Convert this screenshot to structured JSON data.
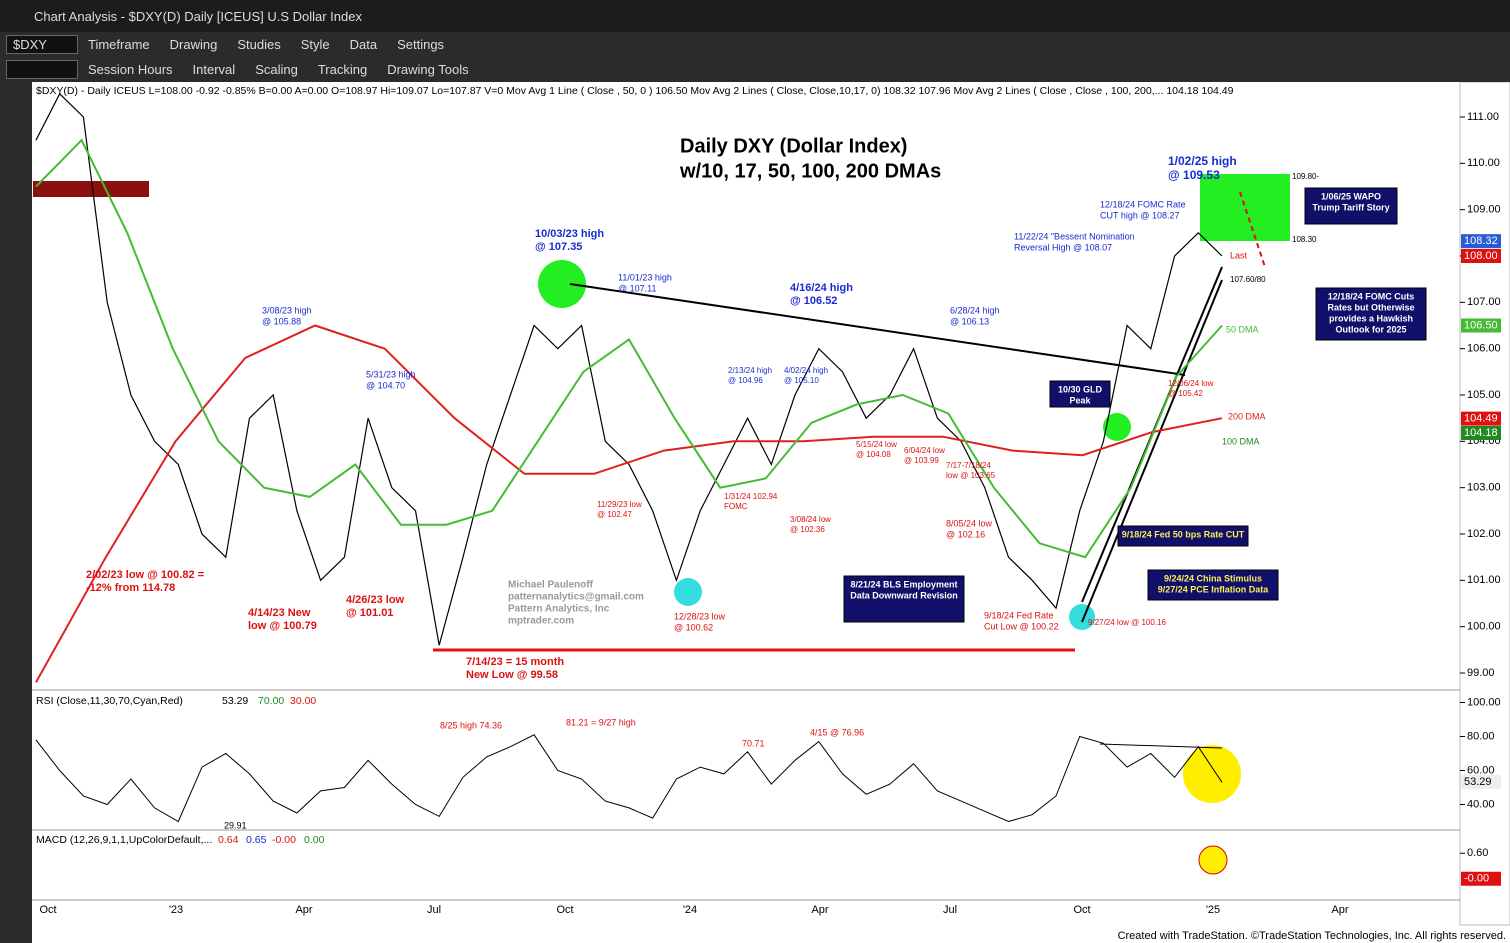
{
  "window_title": "Chart Analysis - $DXY(D) Daily [ICEUS] U.S Dollar Index",
  "toolbar": [
    "$DXY",
    "Timeframe",
    "Drawing",
    "Studies",
    "Style",
    "Data",
    "Settings"
  ],
  "toolbar2": [
    "Session Hours",
    "Interval",
    "Scaling",
    "Tracking",
    "Drawing Tools"
  ],
  "info_line": "$DXY(D) - Daily  ICEUS  L=108.00  -0.92  -0.85%  B=0.00  A=0.00  O=108.97  Hi=109.07  Lo=107.87  V=0  Mov Avg 1 Line (  Close , 50,  0 )  106.50  Mov Avg 2 Lines ( Close, Close,10,17, 0)  108.32  107.96  Mov Avg 2 Lines (  Close , Close , 100, 200,...  104.18  104.49",
  "footer": "Created with TradeStation. ©TradeStation Technologies, Inc. All rights reserved.",
  "chart_data": {
    "type": "line",
    "title": [
      "Daily DXY (Dollar Index)",
      "w/10, 17, 50, 100, 200 DMAs"
    ],
    "x_labels": [
      "Oct",
      "'23",
      "Apr",
      "Jul",
      "Oct",
      "'24",
      "Apr",
      "Jul",
      "Oct",
      "'25",
      "Apr"
    ],
    "ylim": [
      98.5,
      111.8
    ],
    "yticks": [
      {
        "value": 99,
        "label": "99.00"
      },
      {
        "value": 100,
        "label": "100.00"
      },
      {
        "value": 101,
        "label": "101.00"
      },
      {
        "value": 102,
        "label": "102.00"
      },
      {
        "value": 103,
        "label": "103.00"
      },
      {
        "value": 104,
        "label": "104.00"
      },
      {
        "value": 105,
        "label": "105.00"
      },
      {
        "value": 106,
        "label": "106.00"
      },
      {
        "value": 107,
        "label": "107.00"
      },
      {
        "value": 108,
        "label": "108.00"
      },
      {
        "value": 109,
        "label": "109.00"
      },
      {
        "value": 110,
        "label": "110.00"
      },
      {
        "value": 111,
        "label": "111.00"
      }
    ],
    "series": [
      {
        "name": "$DXY",
        "color": "#000000",
        "values": [
          110.5,
          111.5,
          111,
          107,
          105,
          104,
          103.5,
          102,
          101.5,
          104.5,
          105,
          102.5,
          101,
          101.5,
          104.5,
          103,
          102.5,
          99.6,
          101.5,
          103.5,
          105,
          106.5,
          106,
          106.5,
          104,
          103.5,
          102.5,
          101,
          102.5,
          103.5,
          104.5,
          103.5,
          105,
          106,
          105.5,
          104.5,
          105,
          106,
          104.5,
          104,
          103,
          101.5,
          101,
          100.4,
          102.5,
          104,
          106.5,
          106,
          108,
          108.5,
          108
        ]
      },
      {
        "name": "200 DMA",
        "color": "#e02020",
        "values": [
          98.8,
          101.5,
          104,
          105.8,
          106.5,
          106,
          104.5,
          103.3,
          103.3,
          103.8,
          104,
          104,
          104.1,
          104.1,
          103.8,
          103.7,
          104.2,
          104.5
        ]
      },
      {
        "name": "50 DMA",
        "color": "#44bb33",
        "values": [
          109.5,
          110.5,
          108.5,
          106,
          104,
          103,
          102.8,
          103.5,
          102.2,
          102.2,
          102.5,
          104,
          105.5,
          106.2,
          104.5,
          103,
          103.2,
          104.4,
          104.8,
          105,
          104.6,
          103,
          101.8,
          101.5,
          103,
          105.4,
          106.5
        ]
      }
    ],
    "annotations": [
      {
        "lines": [
          "1/02/25 high",
          "@ 109.53"
        ],
        "color": "#1a2bd0"
      },
      {
        "lines": [
          "12/18/24 FOMC Rate",
          "CUT  high @ 108.27"
        ],
        "color": "#1a2bd0"
      },
      {
        "lines": [
          "11/22/24 \"Bessent Nomination",
          "Reversal High @ 108.07"
        ],
        "color": "#1a2bd0"
      },
      {
        "lines": [
          "10/03/23 high",
          "@ 107.35"
        ],
        "color": "#1a2bd0"
      },
      {
        "lines": [
          "11/01/23 high",
          "@ 107.11"
        ],
        "color": "#1a2bd0"
      },
      {
        "lines": [
          "4/16/24 high",
          "@ 106.52"
        ],
        "color": "#1a2bd0"
      },
      {
        "lines": [
          "6/28/24 high",
          "@ 106.13"
        ],
        "color": "#1a2bd0"
      },
      {
        "lines": [
          "3/08/23 high",
          "@ 105.88"
        ],
        "color": "#1a2bd0"
      },
      {
        "lines": [
          "5/31/23 high",
          "@ 104.70"
        ],
        "color": "#1a2bd0"
      },
      {
        "lines": [
          "2/13/24 high",
          "@ 104.96"
        ],
        "color": "#1a2bd0"
      },
      {
        "lines": [
          "4/02/24 high",
          "@ 105.10"
        ],
        "color": "#1a2bd0"
      },
      {
        "lines": [
          "2/02/23 low @ 100.82 =",
          "-12% from 114.78"
        ],
        "color": "#dd1111"
      },
      {
        "lines": [
          "4/14/23 New",
          "low @ 100.79"
        ],
        "color": "#dd1111"
      },
      {
        "lines": [
          "4/26/23 low",
          "@ 101.01"
        ],
        "color": "#dd1111"
      },
      {
        "lines": [
          "7/14/23 = 15 month",
          "New Low @ 99.58"
        ],
        "color": "#dd1111"
      },
      {
        "lines": [
          "11/29/23 low",
          "@ 102.47"
        ],
        "color": "#dd1111"
      },
      {
        "lines": [
          "1/31/24 102.94",
          "FOMC"
        ],
        "color": "#dd1111"
      },
      {
        "lines": [
          "3/08/24 low",
          "@ 102.36"
        ],
        "color": "#dd1111"
      },
      {
        "lines": [
          "5/15/24 low",
          "@ 104.08"
        ],
        "color": "#dd1111"
      },
      {
        "lines": [
          "6/04/24 low",
          "@ 103.99"
        ],
        "color": "#dd1111"
      },
      {
        "lines": [
          "7/17-7/18/24",
          "low @ 103.65"
        ],
        "color": "#dd1111"
      },
      {
        "lines": [
          "8/05/24 low",
          "@ 102.16"
        ],
        "color": "#dd1111"
      },
      {
        "lines": [
          "12/28/23 low",
          "@ 100.62"
        ],
        "color": "#dd1111"
      },
      {
        "lines": [
          "9/18/24 Fed Rate",
          "Cut Low @ 100.22"
        ],
        "color": "#dd1111"
      },
      {
        "lines": [
          "9/27/24 low @ 100.16"
        ],
        "color": "#dd1111"
      },
      {
        "lines": [
          "12/06/24 low",
          "@ 105.42"
        ],
        "color": "#dd1111"
      },
      {
        "lines": [
          "Last"
        ],
        "color": "#dd1111"
      },
      {
        "lines": [
          "107.60/80"
        ],
        "color": "#000000"
      },
      {
        "lines": [
          "50 DMA"
        ],
        "color": "#44bb33"
      },
      {
        "lines": [
          "200 DMA"
        ],
        "color": "#e02020"
      },
      {
        "lines": [
          "100 DMA"
        ],
        "color": "#1f8a1f"
      },
      {
        "lines": [
          "109.80-"
        ],
        "color": "#000000"
      },
      {
        "lines": [
          "108.30"
        ],
        "color": "#000000"
      },
      {
        "lines": [
          "Michael Paulenoff",
          "patternanalytics@gmail.com",
          "Pattern Analytics, Inc",
          "mptrader.com"
        ],
        "color": "#999999"
      }
    ],
    "boxes": [
      {
        "lines": [
          "1/06/25 WAPO",
          "Trump Tariff Story"
        ]
      },
      {
        "lines": [
          "12/18/24 FOMC Cuts",
          "Rates but Otherwise",
          "provides a Hawkish",
          "Outlook for 2025"
        ]
      },
      {
        "lines": [
          "10/30 GLD",
          "Peak"
        ]
      },
      {
        "lines": [
          "9/18/24 Fed 50 bps Rate CUT"
        ]
      },
      {
        "lines": [
          "9/24/24 China Stimulus",
          "9/27/24 PCE Inflation Data"
        ]
      },
      {
        "lines": [
          "8/21/24 BLS Employment",
          "Data Downward Revision"
        ]
      }
    ],
    "badges": [
      {
        "value": 108.32,
        "label": "108.32",
        "color": "#2a5bd7"
      },
      {
        "value": 108,
        "label": "108.00",
        "color": "#dd1111"
      },
      {
        "value": 106.5,
        "label": "106.50",
        "color": "#44bb33"
      },
      {
        "value": 104.49,
        "label": "104.49",
        "color": "#dd1111"
      },
      {
        "value": 104.18,
        "label": "104.18",
        "color": "#1f8a1f"
      }
    ],
    "rsi": {
      "header": [
        "RSI (Close,11,30,70,Cyan,Red)",
        "53.29",
        "70.00",
        "30.00"
      ],
      "ylim": [
        25,
        105
      ],
      "yticks": [
        {
          "value": 40,
          "label": "40.00"
        },
        {
          "value": 60,
          "label": "60.00"
        },
        {
          "value": 80,
          "label": "80.00"
        },
        {
          "value": 100,
          "label": "100.00"
        }
      ],
      "values": [
        78,
        60,
        45,
        40,
        55,
        38,
        30,
        62,
        70,
        58,
        42,
        35,
        48,
        50,
        66,
        52,
        40,
        33,
        56,
        68,
        74,
        81,
        60,
        55,
        42,
        38,
        32,
        55,
        62,
        58,
        71,
        52,
        66,
        77,
        58,
        46,
        52,
        64,
        48,
        42,
        36,
        30,
        34,
        45,
        80,
        76,
        62,
        70,
        56,
        74,
        53
      ],
      "badge": {
        "value": 53.29,
        "label": "53.29"
      },
      "annotations": [
        "8/25 high 74.36",
        "81.21 = 9/27 high",
        "70.71",
        "4/15 @ 76.96",
        "29.91"
      ]
    },
    "macd": {
      "header": [
        "MACD (12,26,9,1,1,UpColorDefault,...",
        "0.64",
        "0.65",
        "-0.00",
        "0.00"
      ],
      "ylim": [
        -0.5,
        1.1
      ],
      "yticks": [
        {
          "value": 0.6,
          "label": "0.60"
        }
      ],
      "badge": {
        "value": 0,
        "label": "-0.00"
      }
    }
  }
}
